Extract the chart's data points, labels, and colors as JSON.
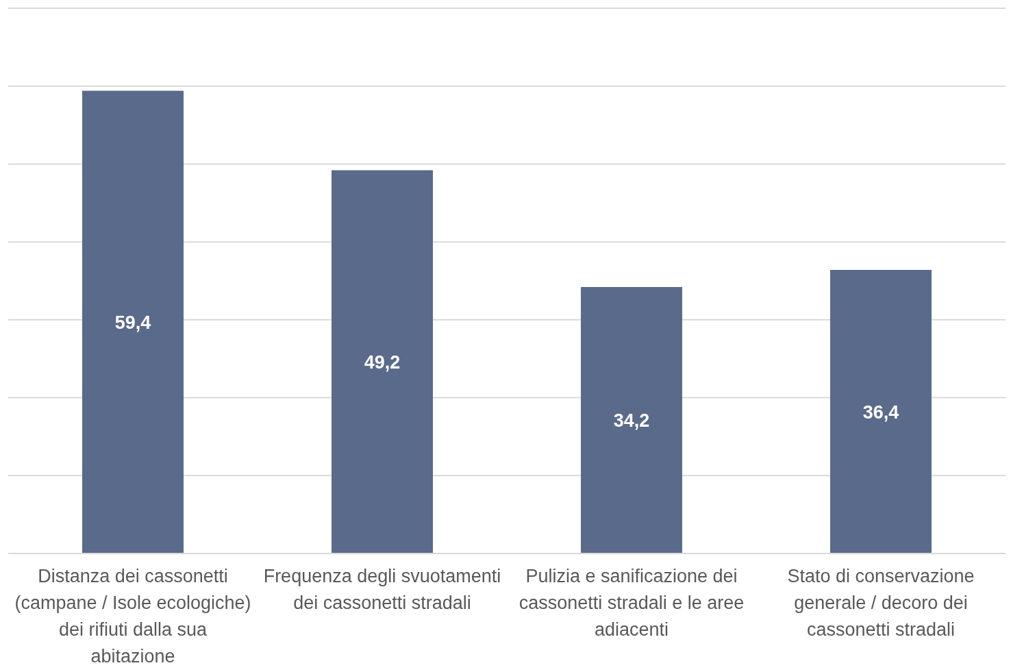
{
  "chart_data": {
    "type": "bar",
    "categories": [
      "Distanza dei cassonetti (campane / Isole ecologiche) dei rifiuti dalla sua abitazione",
      "Frequenza degli svuotamenti dei cassonetti stradali",
      "Pulizia e sanificazione dei cassonetti stradali e le aree adiacenti",
      "Stato di conservazione generale / decoro dei cassonetti stradali"
    ],
    "values": [
      59.4,
      49.2,
      34.2,
      36.4
    ],
    "color": "#5a6a8a",
    "ylim": [
      0,
      70
    ],
    "yticks": [
      {
        "value": 0,
        "label": null
      },
      {
        "value": 10,
        "label": null
      },
      {
        "value": 20,
        "label": null
      },
      {
        "value": 30,
        "label": null
      },
      {
        "value": 40,
        "label": null
      },
      {
        "value": 50,
        "label": null
      },
      {
        "value": 60,
        "label": null
      },
      {
        "value": 70,
        "label": null
      }
    ],
    "value_labels": [
      "59,4",
      "49,2",
      "34,2",
      "36,4"
    ],
    "grid": "y",
    "tick_labels": "x"
  }
}
